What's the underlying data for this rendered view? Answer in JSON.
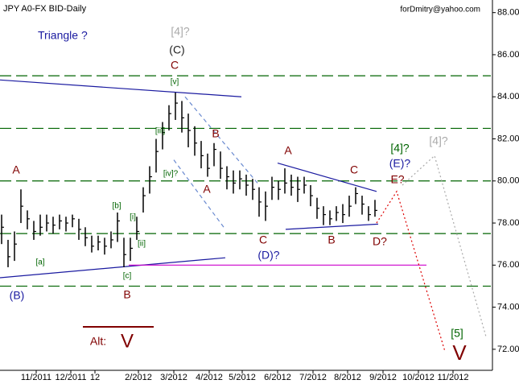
{
  "chart_data": {
    "type": "ohlc",
    "title": "JPY A0-FX BID-Daily",
    "subtitle": "forDmitry@yahoo.com",
    "color": "#000000",
    "xlim": [
      0,
      305
    ],
    "ylim": [
      71,
      88.6
    ],
    "xticks": [
      {
        "value": 22.5,
        "label": "11/2011"
      },
      {
        "value": 44,
        "label": "12/2011"
      },
      {
        "value": 59,
        "label": "12"
      },
      {
        "value": 86,
        "label": "2/2012"
      },
      {
        "value": 108,
        "label": "3/2012"
      },
      {
        "value": 130,
        "label": "4/2012"
      },
      {
        "value": 150.5,
        "label": "5/2012"
      },
      {
        "value": 172.5,
        "label": "6/2012"
      },
      {
        "value": 194.5,
        "label": "7/2012"
      },
      {
        "value": 216,
        "label": "8/2012"
      },
      {
        "value": 238,
        "label": "9/2012"
      },
      {
        "value": 260,
        "label": "10/2012"
      },
      {
        "value": 281.5,
        "label": "11/2012"
      }
    ],
    "yticks": [
      {
        "value": 88,
        "label": "88.00"
      },
      {
        "value": 86,
        "label": "86.00"
      },
      {
        "value": 84,
        "label": "84.00"
      },
      {
        "value": 82,
        "label": "82.00"
      },
      {
        "value": 80,
        "label": "80.00"
      },
      {
        "value": 78,
        "label": "78.00"
      },
      {
        "value": 76,
        "label": "76.00"
      },
      {
        "value": 74,
        "label": "74.00"
      },
      {
        "value": 72,
        "label": "72.00"
      }
    ],
    "x": [
      1,
      5,
      9,
      13,
      17,
      21,
      25,
      29,
      33,
      37,
      41,
      45,
      49,
      53,
      57,
      61,
      65,
      69,
      73,
      77,
      81,
      85,
      89,
      93,
      97,
      101,
      105,
      109,
      113,
      117,
      121,
      125,
      129,
      133,
      137,
      141,
      145,
      149,
      153,
      157,
      161,
      165,
      169,
      173,
      177,
      181,
      185,
      189,
      193,
      197,
      201,
      205,
      209,
      213,
      217,
      221,
      225,
      229,
      233
    ],
    "high": [
      78.4,
      77.2,
      77.6,
      79.6,
      78.6,
      78.1,
      78.4,
      78.4,
      78.3,
      78.4,
      78.3,
      78.4,
      78.2,
      77.8,
      77.4,
      77.4,
      77.3,
      77.6,
      78.5,
      77.3,
      77.3,
      78.3,
      79.7,
      80.7,
      82.0,
      82.8,
      83.6,
      84.2,
      83.8,
      83.2,
      82.6,
      81.9,
      81.3,
      81.8,
      81.4,
      80.7,
      80.5,
      80.5,
      80.3,
      80.1,
      79.7,
      79.5,
      80.2,
      80.0,
      80.6,
      80.3,
      80.2,
      80.2,
      79.8,
      79.2,
      78.8,
      78.6,
      78.8,
      78.9,
      79.3,
      79.7,
      79.3,
      78.8,
      79.1
    ],
    "low": [
      77.0,
      75.9,
      76.2,
      78.0,
      77.7,
      77.2,
      77.4,
      77.6,
      77.5,
      77.7,
      77.6,
      77.8,
      77.2,
      76.9,
      76.6,
      76.7,
      76.5,
      76.8,
      77.1,
      75.9,
      76.2,
      77.2,
      78.5,
      79.4,
      80.4,
      81.5,
      82.4,
      82.9,
      82.3,
      81.6,
      81.2,
      80.6,
      80.2,
      80.7,
      80.1,
      79.6,
      79.4,
      79.6,
      79.3,
      79.1,
      78.3,
      78.1,
      79.1,
      79.1,
      79.4,
      79.3,
      79.0,
      79.4,
      78.8,
      78.2,
      77.9,
      77.9,
      78.1,
      78.0,
      78.3,
      78.9,
      78.4,
      78.1,
      78.3
    ],
    "close": [
      77.8,
      76.4,
      77.0,
      78.8,
      78.2,
      77.6,
      77.8,
      78.0,
      77.9,
      78.1,
      78.0,
      78.2,
      77.7,
      77.3,
      76.9,
      77.1,
      76.9,
      77.2,
      78.1,
      76.5,
      76.8,
      77.6,
      79.3,
      80.2,
      81.4,
      82.3,
      83.2,
      83.7,
      83.0,
      82.4,
      81.8,
      81.2,
      80.6,
      81.5,
      80.6,
      80.2,
      79.9,
      80.1,
      79.8,
      79.6,
      79.0,
      78.8,
      79.7,
      79.6,
      79.9,
      79.7,
      79.6,
      79.8,
      79.3,
      78.7,
      78.4,
      78.2,
      78.5,
      78.4,
      78.8,
      79.4,
      78.9,
      78.4,
      78.6
    ],
    "levels": [
      85,
      82.5,
      80,
      77.5,
      75
    ],
    "level_color": "#006400",
    "trendlines": [
      {
        "x": [
          0,
          150
        ],
        "y": [
          84.8,
          84.0
        ],
        "color": "#1a1aa0",
        "style": "solid"
      },
      {
        "x": [
          0,
          140
        ],
        "y": [
          75.4,
          76.35
        ],
        "color": "#1a1aa0",
        "style": "solid"
      },
      {
        "x": [
          172.5,
          234
        ],
        "y": [
          80.85,
          79.5
        ],
        "color": "#1a1aa0",
        "style": "solid"
      },
      {
        "x": [
          177.5,
          235
        ],
        "y": [
          77.7,
          77.95
        ],
        "color": "#1a1aa0",
        "style": "solid"
      },
      {
        "x": [
          80,
          265
        ],
        "y": [
          76,
          76
        ],
        "color": "#cc00cc",
        "style": "solid"
      },
      {
        "x": [
          115,
          160
        ],
        "y": [
          84.0,
          79.9
        ],
        "color": "#6a8ad0",
        "style": "dashed"
      },
      {
        "x": [
          108,
          140
        ],
        "y": [
          81.0,
          77.7
        ],
        "color": "#6a8ad0",
        "style": "dashed"
      },
      {
        "x": [
          234,
          246.5,
          276.5
        ],
        "y": [
          78.0,
          79.5,
          71.9
        ],
        "color": "#dd0000",
        "style": "dotted"
      },
      {
        "x": [
          250,
          270,
          302
        ],
        "y": [
          79.8,
          81.2,
          72.6
        ],
        "color": "#aaaaaa",
        "style": "dotted"
      }
    ],
    "annotations": [
      "Triangle ?",
      "[4]?",
      "(C)",
      "C",
      "[v]",
      "[iii]",
      "[iv]?",
      "B",
      "A",
      "A",
      "[b]",
      "[i]",
      "[ii]",
      "[a]",
      "[c]",
      "B",
      "(B)",
      "C",
      "(D)?",
      "A",
      "B",
      "C",
      "D?",
      "E?",
      "(E)?",
      "[4]?",
      "[4]?",
      "[5]",
      "V",
      "Alt:",
      "V"
    ]
  }
}
